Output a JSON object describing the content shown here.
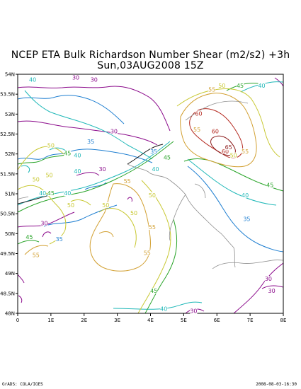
{
  "title_line1": "NCEP ETA Bulk Richardson Number Shear (m2/s2) +3h",
  "title_line2": "Sun,03AUG2008 15Z",
  "x_ticks": [
    "0",
    "1E",
    "2E",
    "3E",
    "4E",
    "5E",
    "6E",
    "7E",
    "8E"
  ],
  "y_ticks": [
    "54N",
    "53.5N",
    "53N",
    "52.5N",
    "52N",
    "51.5N",
    "51N",
    "50.5N",
    "50N",
    "49.5N",
    "49N",
    "48.5N",
    "48N"
  ],
  "footer_left": "GrADS: COLA/IGES",
  "footer_right": "2008-08-03-16:30",
  "contour_colors": {
    "30": "#8b0a8b",
    "35": "#1f7fd1",
    "40": "#20b8b8",
    "45": "#28a428",
    "50": "#c8c832",
    "55": "#d2a032",
    "60": "#b4281e",
    "65": "#8b1a1a"
  },
  "contour_labels": [
    {
      "text": "30",
      "level": "30",
      "lon": 1.75,
      "lat": 53.9
    },
    {
      "text": "30",
      "level": "30",
      "lon": 2.3,
      "lat": 53.85
    },
    {
      "text": "30",
      "level": "30",
      "lon": 2.9,
      "lat": 52.55
    },
    {
      "text": "30",
      "level": "30",
      "lon": 2.55,
      "lat": 51.6
    },
    {
      "text": "30",
      "level": "30",
      "lon": 0.8,
      "lat": 50.25
    },
    {
      "text": "30",
      "level": "30",
      "lon": 7.55,
      "lat": 48.85
    },
    {
      "text": "30",
      "level": "30",
      "lon": 7.65,
      "lat": 48.55
    },
    {
      "text": "30",
      "level": "30",
      "lon": 5.3,
      "lat": 48.04
    },
    {
      "text": "35",
      "level": "35",
      "lon": 2.2,
      "lat": 52.3
    },
    {
      "text": "35",
      "level": "35",
      "lon": 4.1,
      "lat": 52.05
    },
    {
      "text": "35",
      "level": "35",
      "lon": 6.9,
      "lat": 50.35
    },
    {
      "text": "35",
      "level": "35",
      "lon": 1.25,
      "lat": 49.85
    },
    {
      "text": "40",
      "level": "40",
      "lon": 0.45,
      "lat": 53.85
    },
    {
      "text": "40",
      "level": "40",
      "lon": 1.8,
      "lat": 51.95
    },
    {
      "text": "40",
      "level": "40",
      "lon": 7.35,
      "lat": 53.7
    },
    {
      "text": "40",
      "level": "40",
      "lon": 6.85,
      "lat": 50.95
    },
    {
      "text": "40",
      "level": "40",
      "lon": 1.5,
      "lat": 51.0
    },
    {
      "text": "40",
      "level": "40",
      "lon": 1.8,
      "lat": 51.55
    },
    {
      "text": "40",
      "level": "40",
      "lon": 4.15,
      "lat": 51.6
    },
    {
      "text": "40",
      "level": "40",
      "lon": 0.75,
      "lat": 51.0
    },
    {
      "text": "40",
      "level": "40",
      "lon": 4.4,
      "lat": 48.1
    },
    {
      "text": "45",
      "level": "45",
      "lon": 1.5,
      "lat": 52.0
    },
    {
      "text": "45",
      "level": "45",
      "lon": 4.5,
      "lat": 51.9
    },
    {
      "text": "45",
      "level": "45",
      "lon": 7.6,
      "lat": 51.2
    },
    {
      "text": "45",
      "level": "45",
      "lon": 1.0,
      "lat": 51.0
    },
    {
      "text": "45",
      "level": "45",
      "lon": 4.1,
      "lat": 48.55
    },
    {
      "text": "45",
      "level": "45",
      "lon": 6.7,
      "lat": 53.7
    },
    {
      "text": "45",
      "level": "45",
      "lon": 0.35,
      "lat": 49.9
    },
    {
      "text": "50",
      "level": "50",
      "lon": 1.0,
      "lat": 52.2
    },
    {
      "text": "50",
      "level": "50",
      "lon": 0.55,
      "lat": 51.35
    },
    {
      "text": "50",
      "level": "50",
      "lon": 1.6,
      "lat": 50.7
    },
    {
      "text": "50",
      "level": "50",
      "lon": 6.15,
      "lat": 53.7
    },
    {
      "text": "50",
      "level": "50",
      "lon": 4.05,
      "lat": 50.95
    },
    {
      "text": "50",
      "level": "50",
      "lon": 3.5,
      "lat": 50.5
    },
    {
      "text": "50",
      "level": "50",
      "lon": 6.5,
      "lat": 51.95
    },
    {
      "text": "50",
      "level": "50",
      "lon": 2.65,
      "lat": 50.7
    },
    {
      "text": "50",
      "level": "50",
      "lon": 0.95,
      "lat": 51.45
    },
    {
      "text": "55",
      "level": "55",
      "lon": 5.4,
      "lat": 52.6
    },
    {
      "text": "55",
      "level": "55",
      "lon": 5.85,
      "lat": 53.6
    },
    {
      "text": "55",
      "level": "55",
      "lon": 3.3,
      "lat": 51.3
    },
    {
      "text": "55",
      "level": "55",
      "lon": 4.05,
      "lat": 50.15
    },
    {
      "text": "55",
      "level": "55",
      "lon": 3.9,
      "lat": 49.5
    },
    {
      "text": "55",
      "level": "55",
      "lon": 0.55,
      "lat": 49.45
    },
    {
      "text": "55",
      "level": "55",
      "lon": 6.85,
      "lat": 52.05
    },
    {
      "text": "60",
      "level": "60",
      "lon": 5.45,
      "lat": 53.0
    },
    {
      "text": "60",
      "level": "60",
      "lon": 5.95,
      "lat": 52.55
    },
    {
      "text": "60",
      "level": "60",
      "lon": 6.25,
      "lat": 52.05
    },
    {
      "text": "65",
      "level": "65",
      "lon": 6.35,
      "lat": 52.15
    }
  ]
}
